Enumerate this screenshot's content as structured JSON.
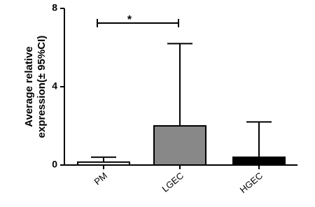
{
  "chart_data": {
    "type": "bar",
    "y_label_lines": [
      "Average relative",
      "expression(± 95%CI)"
    ],
    "categories": [
      "PM",
      "LGEC",
      "HGEC"
    ],
    "values": [
      0.15,
      2.0,
      0.4
    ],
    "errors": [
      0.25,
      4.2,
      1.8
    ],
    "colors": [
      "#ffffff",
      "#888888",
      "#000000"
    ],
    "annotation": "*",
    "ylim": [
      0,
      8
    ],
    "yticks": [
      0,
      4,
      8
    ],
    "grid": false
  }
}
